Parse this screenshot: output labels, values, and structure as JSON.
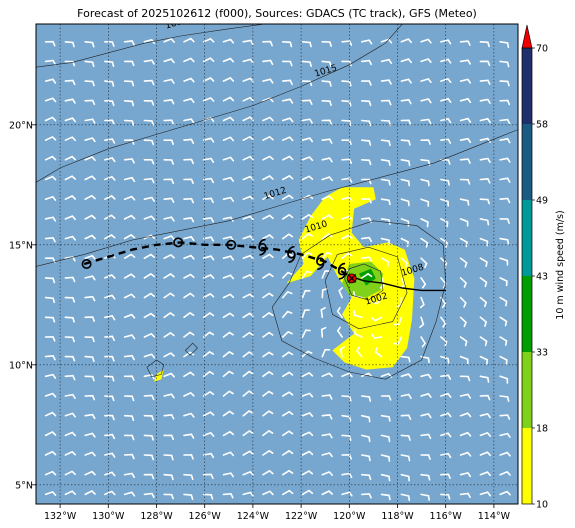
{
  "title": "Forecast of 2025102612 (f000), Sources: GDACS (TC track), GFS (Meteo)",
  "map": {
    "lon_range": [
      -133.0,
      -113.0
    ],
    "lat_range": [
      4.2,
      24.2
    ],
    "lon_ticks": [
      {
        "value": -132,
        "label": "132°W"
      },
      {
        "value": -130,
        "label": "130°W"
      },
      {
        "value": -128,
        "label": "128°W"
      },
      {
        "value": -126,
        "label": "126°W"
      },
      {
        "value": -124,
        "label": "124°W"
      },
      {
        "value": -122,
        "label": "122°W"
      },
      {
        "value": -120,
        "label": "120°W"
      },
      {
        "value": -118,
        "label": "118°W"
      },
      {
        "value": -116,
        "label": "116°W"
      },
      {
        "value": -114,
        "label": "114°W"
      }
    ],
    "lat_ticks": [
      {
        "value": 5,
        "label": "5°N"
      },
      {
        "value": 10,
        "label": "10°N"
      },
      {
        "value": 15,
        "label": "15°N"
      },
      {
        "value": 20,
        "label": "20°N"
      }
    ],
    "grid": true,
    "ocean_color": "#77a7cf"
  },
  "pressure_contours": [
    {
      "label": "1018",
      "points": [
        [
          -133,
          22.4
        ],
        [
          -131.5,
          22.6
        ],
        [
          -130,
          23.0
        ],
        [
          -128.5,
          23.4
        ],
        [
          -127,
          23.7
        ],
        [
          -125,
          24.0
        ],
        [
          -123.5,
          24.2
        ]
      ],
      "label_at": [
        -127.6,
        24.0
      ]
    },
    {
      "label": "1015",
      "points": [
        [
          -133,
          17.6
        ],
        [
          -132,
          18.2
        ],
        [
          -130,
          19.0
        ],
        [
          -128,
          19.6
        ],
        [
          -126,
          20.2
        ],
        [
          -124,
          20.8
        ],
        [
          -122,
          21.6
        ],
        [
          -120,
          22.5
        ],
        [
          -118.5,
          23.4
        ],
        [
          -117.8,
          24.2
        ]
      ],
      "label_at": [
        -121.4,
        22.0
      ]
    },
    {
      "label": "1012",
      "points": [
        [
          -133,
          14.1
        ],
        [
          -131,
          14.6
        ],
        [
          -129,
          15.2
        ],
        [
          -127,
          15.6
        ],
        [
          -125,
          16.0
        ],
        [
          -123,
          16.6
        ],
        [
          -121,
          17.2
        ],
        [
          -119.5,
          17.6
        ],
        [
          -118,
          18.0
        ],
        [
          -116.5,
          18.4
        ],
        [
          -114,
          19.4
        ],
        [
          -113,
          19.8
        ]
      ],
      "label_at": [
        -123.5,
        16.9
      ]
    },
    {
      "label": "1010",
      "points": [
        [
          -122.5,
          13.4
        ],
        [
          -123.2,
          12.4
        ],
        [
          -122.8,
          11.0
        ],
        [
          -121.5,
          10.3
        ],
        [
          -120,
          9.7
        ],
        [
          -118.5,
          9.4
        ],
        [
          -117,
          10.2
        ],
        [
          -116.4,
          11.8
        ],
        [
          -116.0,
          13.4
        ],
        [
          -116.1,
          15.0
        ],
        [
          -117.2,
          15.8
        ],
        [
          -119,
          16.0
        ],
        [
          -120.8,
          15.4
        ],
        [
          -122.0,
          14.6
        ],
        [
          -122.5,
          13.4
        ]
      ],
      "label_at": [
        -121.8,
        15.5
      ]
    },
    {
      "label": "1008",
      "points": [
        [
          -121.0,
          13.5
        ],
        [
          -120.7,
          12.1
        ],
        [
          -119.6,
          11.5
        ],
        [
          -118.2,
          11.8
        ],
        [
          -117.6,
          13.0
        ],
        [
          -118.0,
          14.5
        ],
        [
          -119.2,
          14.9
        ],
        [
          -120.5,
          14.6
        ],
        [
          -121.0,
          13.5
        ]
      ],
      "label_at": [
        -117.8,
        13.7
      ]
    },
    {
      "label": "1002",
      "points": [
        [
          -120.2,
          13.6
        ],
        [
          -119.9,
          12.9
        ],
        [
          -119.2,
          12.7
        ],
        [
          -118.6,
          13.1
        ],
        [
          -118.7,
          13.9
        ],
        [
          -119.4,
          14.2
        ],
        [
          -120.0,
          14.0
        ],
        [
          -120.2,
          13.6
        ]
      ],
      "label_at": [
        -119.3,
        12.5
      ]
    }
  ],
  "island_outlines": [
    [
      [
        -128.4,
        9.9
      ],
      [
        -128.0,
        10.2
      ],
      [
        -127.7,
        10.0
      ],
      [
        -127.8,
        9.6
      ],
      [
        -128.2,
        9.5
      ],
      [
        -128.4,
        9.9
      ]
    ],
    [
      [
        -126.8,
        10.6
      ],
      [
        -126.5,
        10.9
      ],
      [
        -126.3,
        10.7
      ],
      [
        -126.6,
        10.4
      ],
      [
        -126.8,
        10.6
      ]
    ]
  ],
  "wind_fill": {
    "band_18_33": [
      [
        [
          -122.1,
          15.2
        ],
        [
          -121.6,
          16.2
        ],
        [
          -121.0,
          17.0
        ],
        [
          -120.3,
          17.4
        ],
        [
          -119.0,
          17.4
        ],
        [
          -118.9,
          16.9
        ],
        [
          -119.8,
          16.5
        ],
        [
          -119.9,
          15.5
        ],
        [
          -119.4,
          14.9
        ],
        [
          -118.4,
          15.1
        ],
        [
          -117.7,
          14.8
        ],
        [
          -117.3,
          13.6
        ],
        [
          -117.4,
          11.9
        ],
        [
          -117.6,
          10.7
        ],
        [
          -118.2,
          9.9
        ],
        [
          -119.3,
          9.8
        ],
        [
          -120.2,
          10.1
        ],
        [
          -120.7,
          10.6
        ],
        [
          -119.8,
          11.3
        ],
        [
          -120.3,
          12.1
        ],
        [
          -119.9,
          12.8
        ],
        [
          -120.5,
          13.7
        ],
        [
          -120.9,
          14.5
        ],
        [
          -121.6,
          13.7
        ],
        [
          -122.6,
          13.4
        ],
        [
          -121.9,
          14.2
        ],
        [
          -122.1,
          15.2
        ]
      ],
      [
        [
          -128.0,
          9.6
        ],
        [
          -127.7,
          9.8
        ],
        [
          -127.8,
          9.4
        ],
        [
          -128.1,
          9.3
        ],
        [
          -128.0,
          9.6
        ]
      ]
    ],
    "band_33_43": [
      [
        [
          -120.3,
          13.4
        ],
        [
          -120.0,
          14.2
        ],
        [
          -119.1,
          14.3
        ],
        [
          -118.6,
          13.8
        ],
        [
          -118.7,
          13.1
        ],
        [
          -119.3,
          12.8
        ],
        [
          -120.0,
          12.9
        ],
        [
          -120.3,
          13.4
        ]
      ]
    ],
    "band_43_49": [
      [
        [
          -119.6,
          13.8
        ],
        [
          -119.1,
          14.0
        ],
        [
          -118.9,
          13.6
        ],
        [
          -119.3,
          13.3
        ],
        [
          -119.6,
          13.8
        ]
      ]
    ]
  },
  "tc_track": {
    "past_dashed": [
      [
        -131.0,
        14.2
      ],
      [
        -130.0,
        14.5
      ],
      [
        -129.0,
        14.8
      ],
      [
        -128.0,
        15.0
      ],
      [
        -127.0,
        15.1
      ],
      [
        -126.0,
        15.0
      ],
      [
        -125.0,
        15.0
      ],
      [
        -124.0,
        14.9
      ],
      [
        -123.0,
        14.8
      ],
      [
        -122.0,
        14.6
      ],
      [
        -121.0,
        14.3
      ],
      [
        -120.5,
        14.0
      ],
      [
        -120.0,
        13.7
      ]
    ],
    "future_solid": [
      [
        -120.0,
        13.7
      ],
      [
        -119.4,
        13.5
      ],
      [
        -118.6,
        13.4
      ],
      [
        -117.8,
        13.2
      ],
      [
        -117.0,
        13.1
      ],
      [
        -116.2,
        13.1
      ],
      [
        -116.0,
        13.1
      ]
    ],
    "positions": [
      {
        "lon": -130.9,
        "lat": 14.2,
        "symbol": "circle"
      },
      {
        "lon": -127.1,
        "lat": 15.1,
        "symbol": "circle"
      },
      {
        "lon": -124.9,
        "lat": 15.0,
        "symbol": "circle"
      },
      {
        "lon": -123.6,
        "lat": 14.9,
        "symbol": "storm"
      },
      {
        "lon": -122.4,
        "lat": 14.6,
        "symbol": "storm"
      },
      {
        "lon": -121.2,
        "lat": 14.3,
        "symbol": "storm"
      },
      {
        "lon": -120.3,
        "lat": 13.9,
        "symbol": "storm"
      },
      {
        "lon": -119.9,
        "lat": 13.6,
        "symbol": "current"
      }
    ]
  },
  "colorbar": {
    "label": "10 m wind speed (m/s)",
    "ticks": [
      "10",
      "18",
      "33",
      "43",
      "49",
      "58",
      "70"
    ],
    "colors": [
      "#ffff00",
      "#7fd11a",
      "#009e00",
      "#009999",
      "#1a5b82",
      "#1f2f6b"
    ],
    "extend_color": "#ee0000"
  }
}
